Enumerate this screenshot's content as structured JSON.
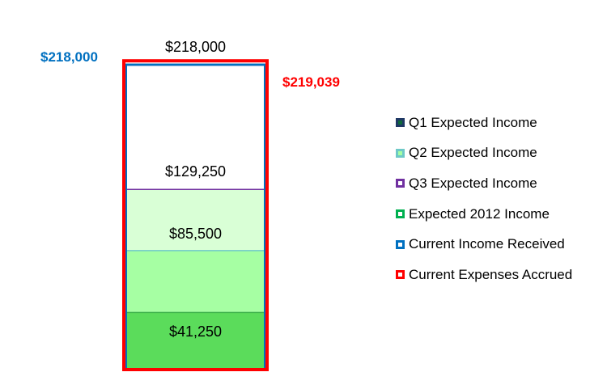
{
  "chart_data": {
    "type": "bar",
    "subtype": "stacked-single-column",
    "ylim": [
      0,
      220000
    ],
    "segments": [
      {
        "name": "Expected 2012 Income",
        "value": 41250,
        "cumulative": 41250,
        "label": "$41,250",
        "fill": "#5bdc5b",
        "border": "#3cb04a"
      },
      {
        "name": "Q1 Expected Income",
        "value": 44250,
        "cumulative": 85500,
        "label": "$85,500",
        "fill": "#a6ffa3",
        "border": "#6ec9c7"
      },
      {
        "name": "Q2 Expected Income",
        "value": 43750,
        "cumulative": 129250,
        "label": "",
        "fill": "#d9ffd6",
        "border": "#7030a0"
      },
      {
        "name": "Q3 Expected Income",
        "value": 88750,
        "cumulative": 218000,
        "label": "$129,250",
        "fill": "#ffffff",
        "border": "#2e75b6"
      }
    ],
    "top_label": "$218,000",
    "current_income_received": {
      "value": 218000,
      "label": "$218,000",
      "color": "#0070c0"
    },
    "current_expenses_accrued": {
      "value": 219039,
      "label": "$219,039",
      "color": "#ff0000"
    },
    "legend_position": "right"
  },
  "legend": {
    "items": [
      {
        "label": "Q1 Expected Income",
        "fill": "#0e6b3a",
        "border": "#1f3864"
      },
      {
        "label": "Q2 Expected Income",
        "fill": "#a6ffa3",
        "border": "#6ec9c7"
      },
      {
        "label": "Q3 Expected Income",
        "fill": "#ffffff",
        "border": "#7030a0"
      },
      {
        "label": "Expected 2012 Income",
        "fill": "#ffffff",
        "border": "#00b050"
      },
      {
        "label": "Current Income Received",
        "fill": "#ffffff",
        "border": "#0070c0"
      },
      {
        "label": "Current Expenses Accrued",
        "fill": "#ffffff",
        "border": "#ff0000"
      }
    ]
  }
}
